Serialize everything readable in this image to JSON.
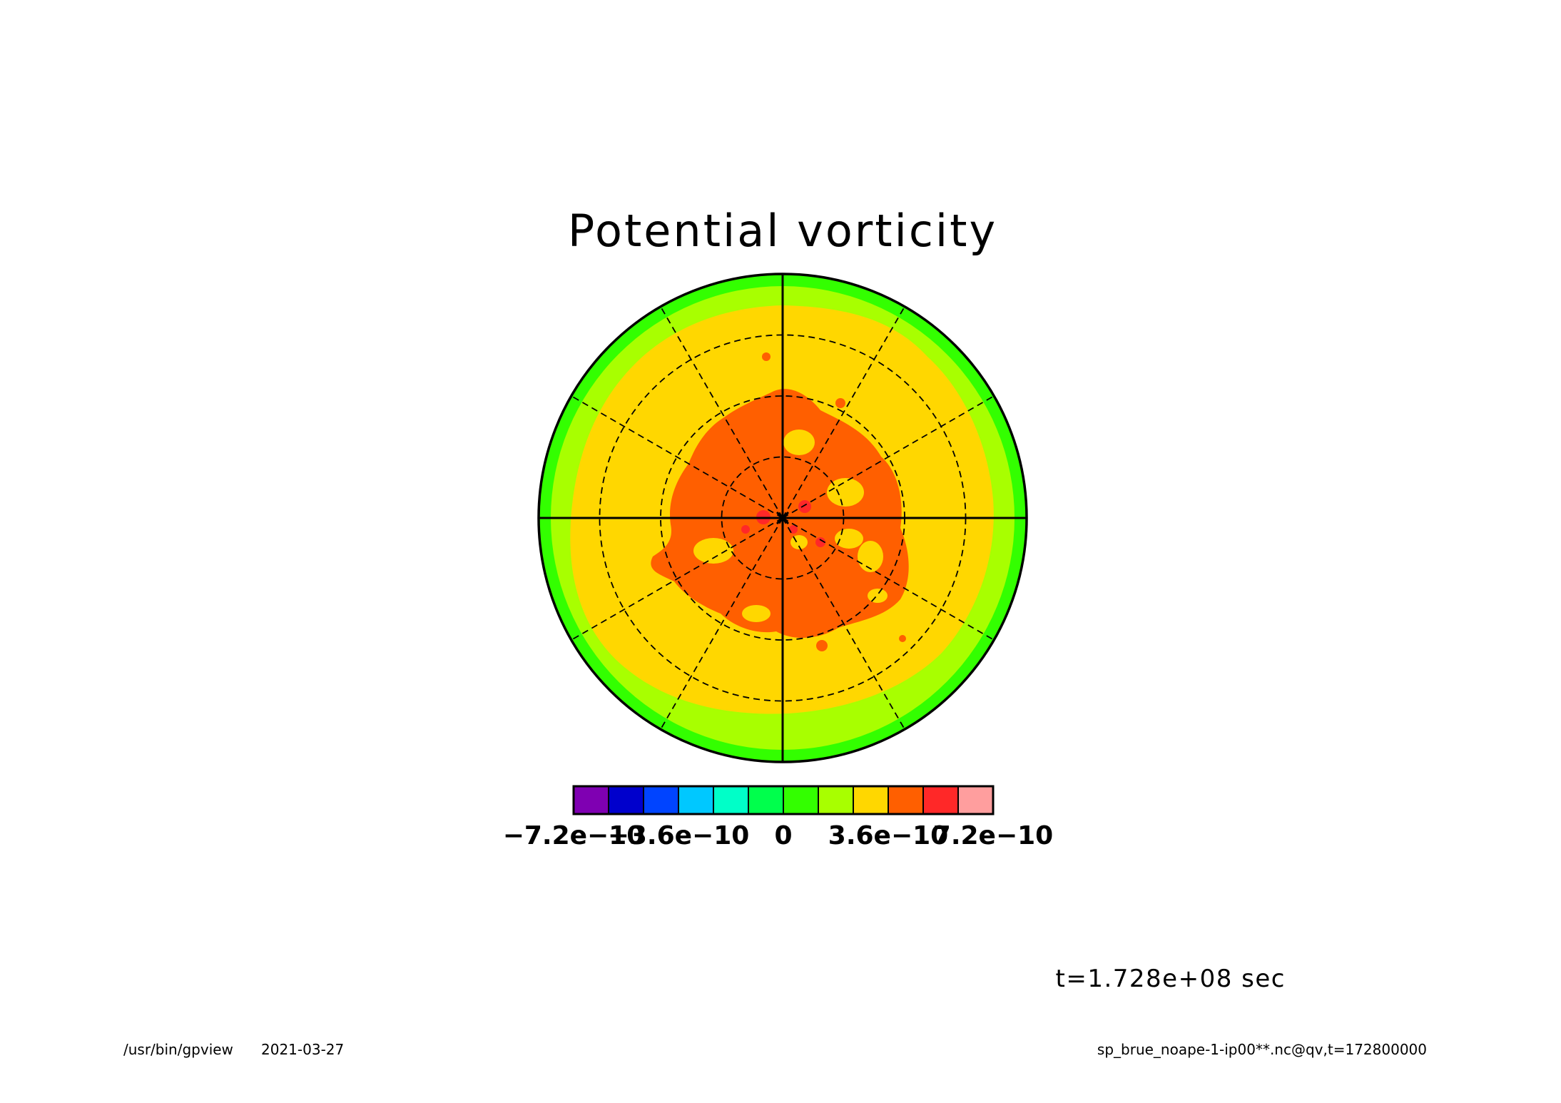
{
  "chart_data": {
    "type": "heatmap",
    "projection": "polar-stereographic",
    "title": "Potential vorticity",
    "colorbar": {
      "colors": [
        "#7f00b2",
        "#0000cc",
        "#0044ff",
        "#00c8ff",
        "#00ffc8",
        "#00ff4c",
        "#33ff00",
        "#a8ff00",
        "#ffd700",
        "#ff5f00",
        "#ff2828",
        "#ff9e9e"
      ],
      "tick_values": [
        -7.2e-10,
        -3.6e-10,
        0,
        3.6e-10,
        7.2e-10
      ],
      "tick_labels": [
        "−7.2e−10",
        "−3.6e−10",
        "0",
        "3.6e−10",
        "7.2e−10"
      ]
    },
    "regions_by_level": [
      {
        "level_index": 6,
        "description": "outer rim band"
      },
      {
        "level_index": 7,
        "description": "mid-outer ring"
      },
      {
        "level_index": 8,
        "description": "broad ring"
      },
      {
        "level_index": 9,
        "description": "central patchy core"
      },
      {
        "level_index": 10,
        "description": "scattered spots near pole"
      }
    ],
    "meridian_lines": 12,
    "latitude_circles": 3
  },
  "annotations": {
    "time_label": "t=1.728e+08 sec",
    "program_path": "/usr/bin/gpview",
    "date": "2021-03-27",
    "source_file": "sp_brue_noape-1-ip00**.nc@qv,t=172800000"
  }
}
